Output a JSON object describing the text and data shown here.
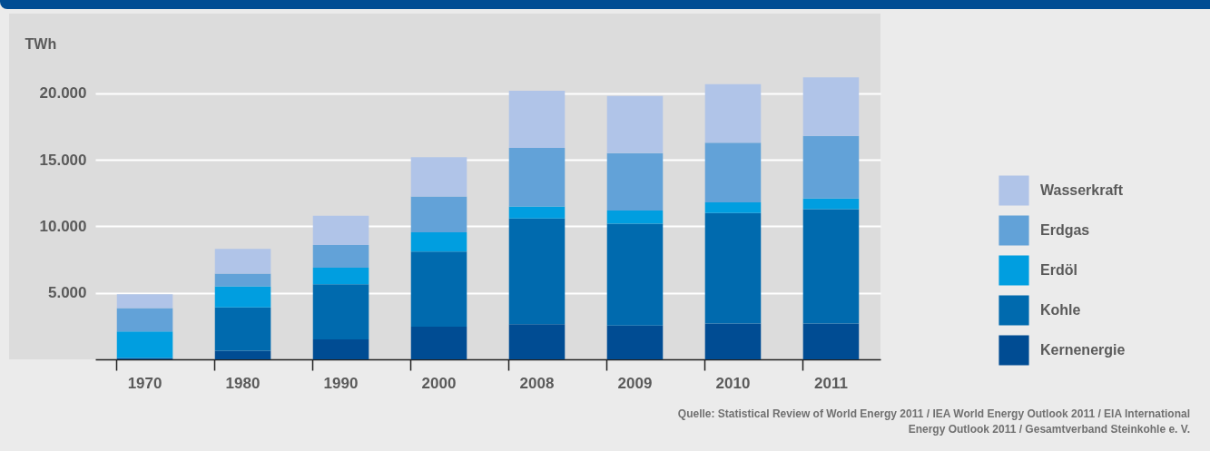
{
  "chart_data": {
    "type": "bar",
    "stacked": true,
    "ylabel": "TWh",
    "categories": [
      "1970",
      "1980",
      "1990",
      "2000",
      "2008",
      "2009",
      "2010",
      "2011"
    ],
    "series": [
      {
        "name": "Kernenergie",
        "color": "#004c93",
        "values": [
          100,
          650,
          1500,
          2450,
          2650,
          2550,
          2700,
          2700
        ]
      },
      {
        "name": "Kohle",
        "color": "#006aae",
        "values": [
          0,
          3250,
          4150,
          5650,
          7950,
          7650,
          8300,
          8600
        ]
      },
      {
        "name": "Erdöl",
        "color": "#009ee0",
        "values": [
          2000,
          1600,
          1250,
          1450,
          900,
          1000,
          800,
          800
        ]
      },
      {
        "name": "Erdgas",
        "color": "#62a2d8",
        "values": [
          1750,
          950,
          1700,
          2700,
          4400,
          4300,
          4500,
          4700
        ]
      },
      {
        "name": "Wasserkraft",
        "color": "#b0c4e8",
        "values": [
          1050,
          1850,
          2200,
          2950,
          4300,
          4300,
          4400,
          4400
        ]
      }
    ],
    "ylim": [
      0,
      26000
    ],
    "yticks": [
      {
        "value": 5000,
        "label": "5.000"
      },
      {
        "value": 10000,
        "label": "10.000"
      },
      {
        "value": 15000,
        "label": "15.000"
      },
      {
        "value": 20000,
        "label": "20.000"
      }
    ],
    "grid": "y",
    "legend": "right",
    "annotations": [
      "Quelle: Statistical Review of World Energy 2011 / IEA World Energy Outlook 2011 / EIA International Energy Outlook 2011 / Gesamtverband Steinkohle e. V."
    ]
  }
}
